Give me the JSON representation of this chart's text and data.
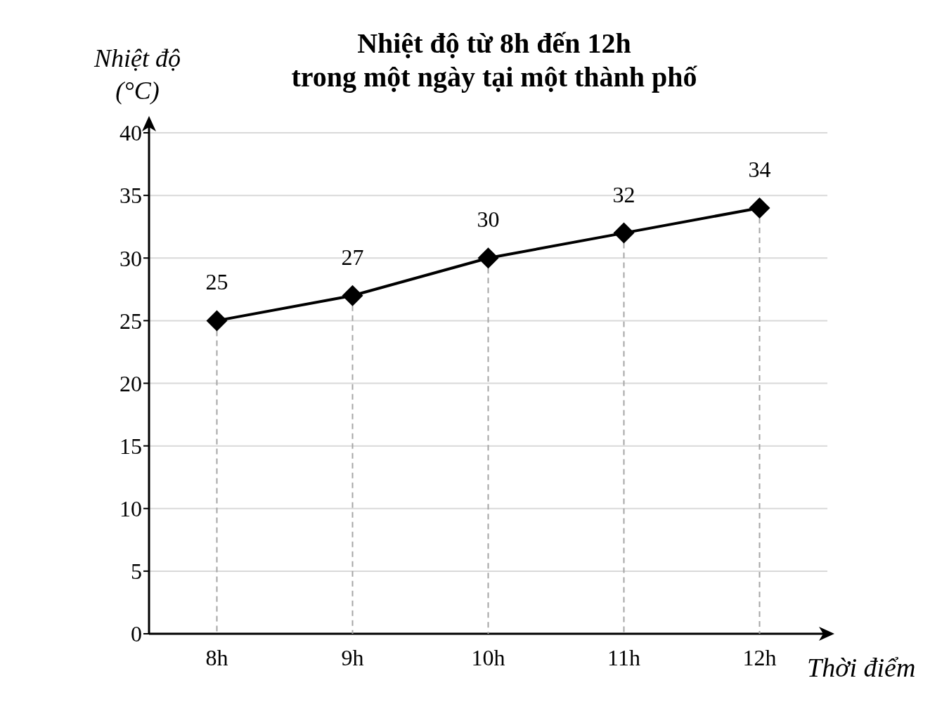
{
  "chart_data": {
    "type": "line",
    "title": "Nhiệt độ từ 8h đến 12h\ntrong một ngày tại một thành phố",
    "xlabel": "Thời điểm",
    "ylabel": "Nhiệt độ (°C)",
    "categories": [
      "8h",
      "9h",
      "10h",
      "11h",
      "12h"
    ],
    "series": [
      {
        "color": "#000000",
        "values": [
          25,
          27,
          30,
          32,
          34
        ]
      }
    ],
    "ylim": [
      0,
      40
    ],
    "yticks": [
      0,
      5,
      10,
      15,
      20,
      25,
      30,
      35,
      40
    ],
    "grid": true,
    "marker": "diamond",
    "line_style": "solid",
    "data_labels": true
  }
}
